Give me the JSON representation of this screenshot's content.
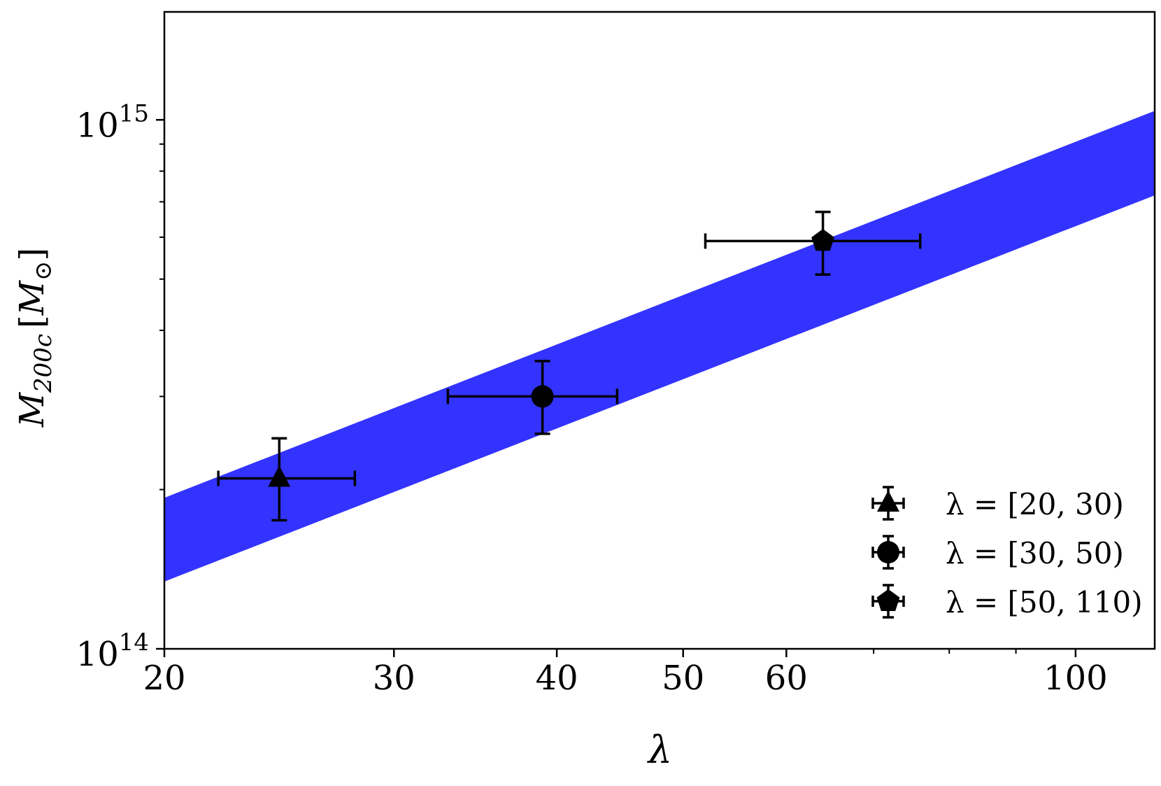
{
  "chart_data": {
    "type": "scatter",
    "title": "",
    "xlabel": "λ",
    "ylabel": {
      "main": "M",
      "sub": "200c",
      "unit_open": "[",
      "unit_main": "M",
      "unit_sub": "⊙",
      "unit_close": "]"
    },
    "x_scale": "log",
    "y_scale": "log",
    "xlim": [
      20,
      115
    ],
    "ylim": [
      100000000000000.0,
      1600000000000000.0
    ],
    "x_major_ticks": [
      {
        "value": 20,
        "label": "20"
      },
      {
        "value": 30,
        "label": "30"
      },
      {
        "value": 40,
        "label": "40"
      },
      {
        "value": 50,
        "label": "50"
      },
      {
        "value": 60,
        "label": "60"
      },
      {
        "value": 100,
        "label": "100"
      }
    ],
    "x_minor_ticks": [
      70,
      80,
      90
    ],
    "y_major_ticks": [
      {
        "value": 100000000000000.0,
        "base": "10",
        "exp": "14"
      },
      {
        "value": 1000000000000000.0,
        "base": "10",
        "exp": "15"
      }
    ],
    "y_minor_ticks": [
      200000000000000.0,
      300000000000000.0,
      400000000000000.0,
      500000000000000.0,
      600000000000000.0,
      700000000000000.0,
      800000000000000.0,
      900000000000000.0
    ],
    "grid": false,
    "band": {
      "color": "#3333ff",
      "x": [
        20,
        115
      ],
      "lower": [
        134000000000000.0,
        720000000000000.0
      ],
      "upper": [
        193000000000000.0,
        1040000000000000.0
      ]
    },
    "series": [
      {
        "name": "λ = [20, 30)",
        "marker": "triangle",
        "x": 24.5,
        "xerr_low": 22.0,
        "xerr_high": 28.0,
        "y": 210000000000000.0,
        "yerr_low": 175000000000000.0,
        "yerr_high": 250000000000000.0
      },
      {
        "name": "λ = [30, 50)",
        "marker": "circle",
        "x": 39.0,
        "xerr_low": 33.0,
        "xerr_high": 44.5,
        "y": 300000000000000.0,
        "yerr_low": 255000000000000.0,
        "yerr_high": 350000000000000.0
      },
      {
        "name": "λ = [50, 110)",
        "marker": "pentagon",
        "x": 64.0,
        "xerr_low": 52.0,
        "xerr_high": 76.0,
        "y": 590000000000000.0,
        "yerr_low": 510000000000000.0,
        "yerr_high": 670000000000000.0
      }
    ],
    "legend_position": "bottom-right",
    "marker_color": "#000000"
  }
}
